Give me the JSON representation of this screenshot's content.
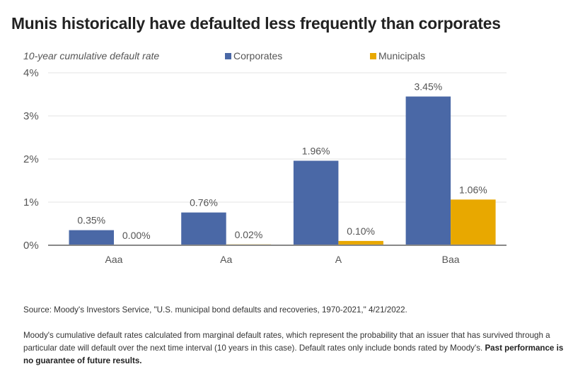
{
  "chart_data": {
    "type": "bar",
    "title": "Munis historically have defaulted less frequently than corporates",
    "subtitle": "10-year cumulative default rate",
    "xlabel": "",
    "ylabel": "",
    "categories": [
      "Aaa",
      "Aa",
      "A",
      "Baa"
    ],
    "series": [
      {
        "name": "Corporates",
        "color": "#4a68a6",
        "values": [
          0.35,
          0.76,
          1.96,
          3.45
        ],
        "labels": [
          "0.35%",
          "0.76%",
          "1.96%",
          "3.45%"
        ]
      },
      {
        "name": "Municipals",
        "color": "#e8a800",
        "values": [
          0.0,
          0.02,
          0.1,
          1.06
        ],
        "labels": [
          "0.00%",
          "0.02%",
          "0.10%",
          "1.06%"
        ]
      }
    ],
    "ylim": [
      0,
      4
    ],
    "yticks": [
      0,
      1,
      2,
      3,
      4
    ],
    "ytick_labels": [
      "0%",
      "1%",
      "2%",
      "3%",
      "4%"
    ],
    "grid": true,
    "legend_position": "top"
  },
  "footnotes": {
    "source": "Source: Moody's Investors Service, \"U.S. municipal bond defaults and recoveries, 1970-2021,\" 4/21/2022.",
    "note": "Moody's cumulative default rates calculated from marginal default rates, which represent the probability that an issuer that has survived through a particular date will default over the next time interval (10 years in this case). Default rates only include bonds rated by Moody's. ",
    "note_bold": "Past performance is no guarantee of future results."
  }
}
